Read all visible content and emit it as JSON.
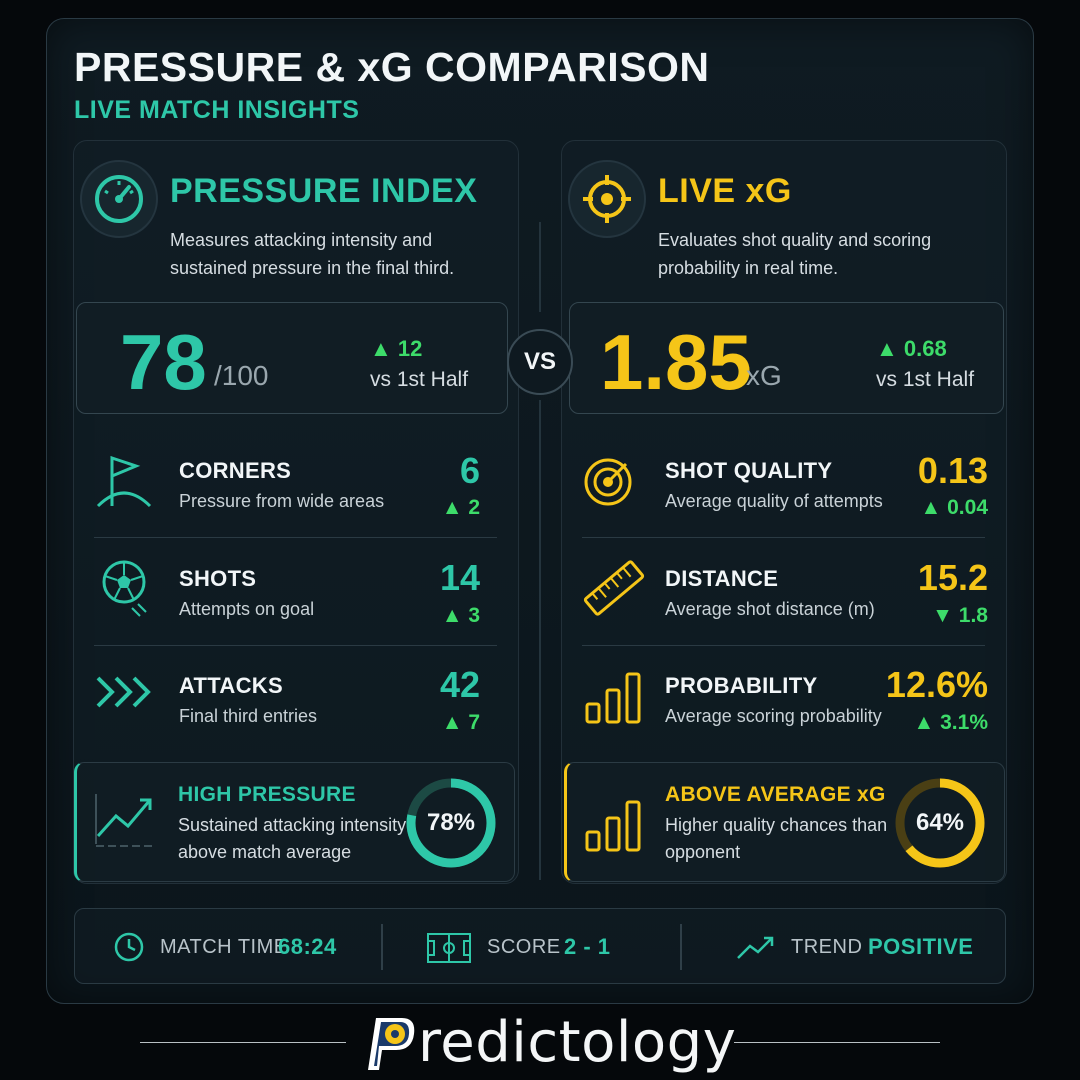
{
  "header": {
    "title": "PRESSURE & xG COMPARISON",
    "subtitle": "LIVE MATCH INSIGHTS"
  },
  "colors": {
    "teal": "#2ec7a8",
    "yellow": "#f5c518",
    "positive_green": "#3ddc6a",
    "background": "#05080b"
  },
  "pressure": {
    "icon": "speedometer-icon",
    "title": "PRESSURE INDEX",
    "description": "Measures attacking intensity and sustained pressure in the final third.",
    "value": "78",
    "unit": "/100",
    "delta": "12",
    "delta_direction": "up",
    "delta_label": "vs 1st Half",
    "rows": [
      {
        "icon": "corner-flag-icon",
        "title": "CORNERS",
        "desc": "Pressure from wide areas",
        "value": "6",
        "delta": "2",
        "direction": "up"
      },
      {
        "icon": "soccer-ball-icon",
        "title": "SHOTS",
        "desc": "Attempts on goal",
        "value": "14",
        "delta": "3",
        "direction": "up"
      },
      {
        "icon": "chevrons-right-icon",
        "title": "ATTACKS",
        "desc": "Final third entries",
        "value": "42",
        "delta": "7",
        "direction": "up"
      }
    ],
    "highlight": {
      "icon": "trend-chart-icon",
      "title": "HIGH PRESSURE",
      "desc": "Sustained attacking intensity above match average",
      "ring_label": "78%",
      "ring_fraction": 0.78
    }
  },
  "xg": {
    "icon": "crosshair-icon",
    "title": "LIVE xG",
    "description": "Evaluates shot quality and scoring probability in real time.",
    "value": "1.85",
    "unit": "xG",
    "delta": "0.68",
    "delta_direction": "up",
    "delta_label": "vs 1st Half",
    "rows": [
      {
        "icon": "target-icon",
        "title": "SHOT QUALITY",
        "desc": "Average quality of attempts",
        "value": "0.13",
        "delta": "0.04",
        "direction": "up"
      },
      {
        "icon": "ruler-icon",
        "title": "DISTANCE",
        "desc": "Average shot distance (m)",
        "value": "15.2",
        "delta": "1.8",
        "direction": "down"
      },
      {
        "icon": "bar-chart-icon",
        "title": "PROBABILITY",
        "desc": "Average scoring probability",
        "value": "12.6%",
        "delta": "3.1%",
        "direction": "up"
      }
    ],
    "highlight": {
      "icon": "bar-chart-icon",
      "title": "ABOVE AVERAGE xG",
      "desc": "Higher quality chances than opponent",
      "ring_label": "64%",
      "ring_fraction": 0.64
    }
  },
  "vs_label": "VS",
  "footer": {
    "match_time_label": "MATCH TIME",
    "match_time_value": "68:24",
    "score_label": "SCORE",
    "score_value": "2 - 1",
    "trend_label": "TREND",
    "trend_value": "POSITIVE"
  },
  "brand": {
    "logo_letter": "P",
    "name": "redictology"
  }
}
